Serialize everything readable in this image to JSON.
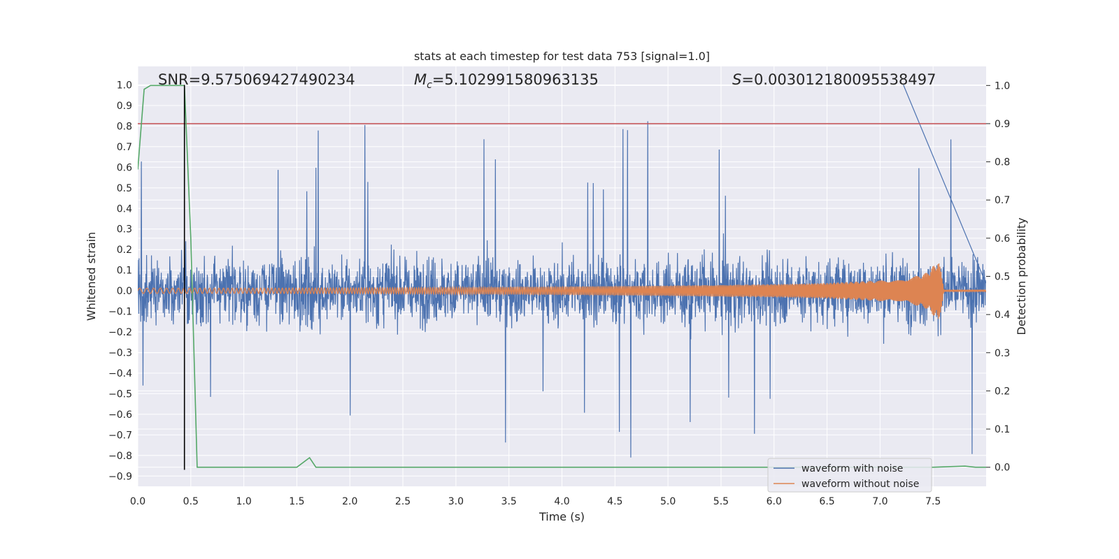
{
  "chart_data": {
    "type": "line",
    "title": "stats at each timestep for test data 753 [signal=1.0]",
    "xlabel": "Time (s)",
    "ylabel": "Whitened strain",
    "y2label": "Detection probability",
    "xlim": [
      0.0,
      8.0
    ],
    "ylim": [
      -0.95,
      1.09
    ],
    "y2lim": [
      -0.05,
      1.05
    ],
    "xticks": [
      "0.0",
      "0.5",
      "1.0",
      "1.5",
      "2.0",
      "2.5",
      "3.0",
      "3.5",
      "4.0",
      "4.5",
      "5.0",
      "5.5",
      "6.0",
      "6.5",
      "7.0",
      "7.5"
    ],
    "yticks": [
      "-0.9",
      "-0.8",
      "-0.7",
      "-0.6",
      "-0.5",
      "-0.4",
      "-0.3",
      "-0.2",
      "-0.1",
      "0.0",
      "0.1",
      "0.2",
      "0.3",
      "0.4",
      "0.5",
      "0.6",
      "0.7",
      "0.8",
      "0.9",
      "1.0"
    ],
    "y2ticks": [
      "0.0",
      "0.1",
      "0.2",
      "0.3",
      "0.4",
      "0.5",
      "0.6",
      "0.7",
      "0.8",
      "0.9",
      "1.0"
    ],
    "annotations": {
      "snr": "SNR=9.575069427490234",
      "mc_symbol": "M",
      "mc_subscript": "c",
      "mc_value": "=5.102991580963135",
      "s_symbol": "S",
      "s_value": "=0.003012180095538497"
    },
    "grid": true,
    "legend_placement": "lower-right",
    "series": [
      {
        "name": "waveform with noise",
        "color": "#4c72b0",
        "note_envelope": {
          "typical_upper": 0.35,
          "typical_lower": -0.33,
          "peak_max": 1.0,
          "peak_min": -0.87
        }
      },
      {
        "name": "waveform without noise",
        "color": "#dd8452",
        "envelope": {
          "x": [
            0.0,
            1.0,
            2.0,
            3.0,
            4.0,
            5.0,
            6.0,
            6.5,
            7.0,
            7.3,
            7.45,
            7.5,
            7.55,
            7.58,
            7.6,
            8.0
          ],
          "amp": [
            0.013,
            0.013,
            0.014,
            0.016,
            0.02,
            0.025,
            0.032,
            0.038,
            0.05,
            0.065,
            0.09,
            0.12,
            0.14,
            0.1,
            0.003,
            0.003
          ]
        }
      },
      {
        "name": "detection probability",
        "axis": "right",
        "color": "#55a868",
        "x": [
          0.0,
          0.06,
          0.12,
          0.44,
          0.5,
          0.56,
          1.0,
          1.5,
          1.62,
          1.68,
          5.0,
          6.0,
          7.5,
          7.8,
          7.9,
          8.0
        ],
        "values": [
          0.78,
          0.99,
          1.0,
          1.0,
          0.6,
          0.0,
          0.0,
          0.0,
          0.025,
          0.0,
          0.0,
          0.0,
          0.0,
          0.003,
          0.0,
          0.0
        ]
      }
    ],
    "threshold": {
      "axis": "right",
      "value": 0.9,
      "color": "#c44e52"
    },
    "vline": {
      "x": 0.44,
      "ymin": -0.87,
      "ymax": 1.0,
      "color": "#000000"
    }
  },
  "legend": {
    "items": [
      {
        "label": "waveform with noise",
        "color": "#4c72b0"
      },
      {
        "label": "waveform without noise",
        "color": "#dd8452"
      }
    ]
  }
}
